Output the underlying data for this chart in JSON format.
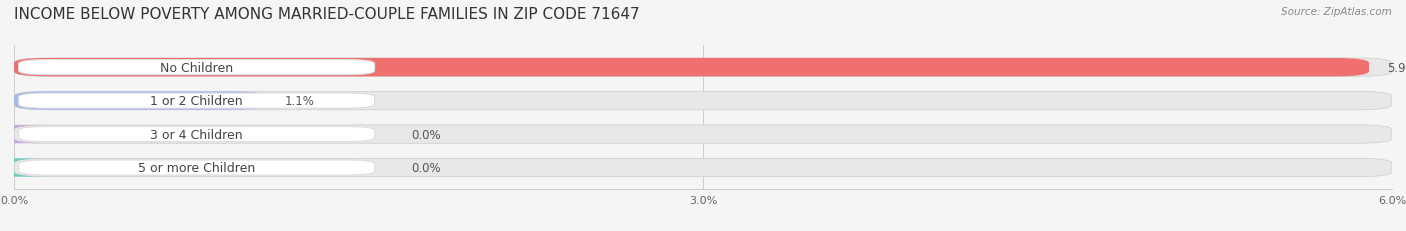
{
  "title": "INCOME BELOW POVERTY AMONG MARRIED-COUPLE FAMILIES IN ZIP CODE 71647",
  "source": "Source: ZipAtlas.com",
  "categories": [
    "No Children",
    "1 or 2 Children",
    "3 or 4 Children",
    "5 or more Children"
  ],
  "values": [
    5.9,
    1.1,
    0.0,
    0.0
  ],
  "bar_colors": [
    "#f07070",
    "#a8b8e8",
    "#c8a8d8",
    "#70c8c0"
  ],
  "label_colors": [
    "#f07070",
    "#a8b8e8",
    "#c8a8d8",
    "#70c8c0"
  ],
  "background_color": "#f5f5f5",
  "bar_background": "#e8e8e8",
  "xlim": [
    0,
    6.0
  ],
  "xticks": [
    0.0,
    3.0,
    6.0
  ],
  "xtick_labels": [
    "0.0%",
    "3.0%",
    "6.0%"
  ],
  "title_fontsize": 11,
  "label_fontsize": 9,
  "value_fontsize": 8.5,
  "bar_height": 0.55,
  "figsize": [
    14.06,
    2.32
  ]
}
